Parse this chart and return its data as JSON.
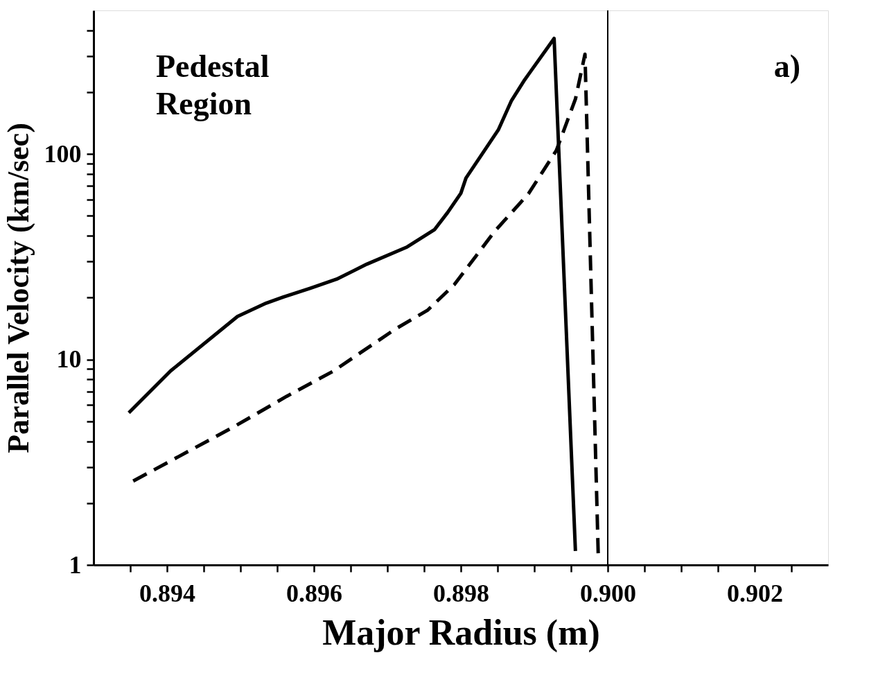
{
  "chart_data": {
    "type": "line",
    "xlabel": "Major Radius (m)",
    "ylabel": "Parallel Velocity (km/sec)",
    "annotations": [
      "Pedestal\nRegion",
      "a)"
    ],
    "log": "y",
    "xlim": [
      0.893,
      0.903
    ],
    "ylim": [
      1,
      500
    ],
    "xticks": [
      {
        "value": 0.8935,
        "label": null
      },
      0.894,
      {
        "value": 0.8945,
        "label": null
      },
      {
        "value": 0.895,
        "label": null
      },
      {
        "value": 0.8955,
        "label": null
      },
      0.896,
      {
        "value": 0.8965,
        "label": null
      },
      {
        "value": 0.897,
        "label": null
      },
      {
        "value": 0.8975,
        "label": null
      },
      0.898,
      {
        "value": 0.8985,
        "label": null
      },
      {
        "value": 0.899,
        "label": null
      },
      {
        "value": 0.8995,
        "label": null
      },
      {
        "value": 0.9,
        "label": "0.900"
      },
      {
        "value": 0.9005,
        "label": null
      },
      {
        "value": 0.901,
        "label": null
      },
      {
        "value": 0.9015,
        "label": null
      },
      0.902,
      {
        "value": 0.9025,
        "label": null
      }
    ],
    "yticks": [
      1,
      {
        "value": 2,
        "label": null
      },
      {
        "value": 3,
        "label": null
      },
      {
        "value": 4,
        "label": null
      },
      {
        "value": 5,
        "label": null
      },
      {
        "value": 6,
        "label": null
      },
      {
        "value": 7,
        "label": null
      },
      {
        "value": 8,
        "label": null
      },
      {
        "value": 9,
        "label": null
      },
      10,
      {
        "value": 20,
        "label": null
      },
      {
        "value": 30,
        "label": null
      },
      {
        "value": 40,
        "label": null
      },
      {
        "value": 50,
        "label": null
      },
      {
        "value": 60,
        "label": null
      },
      {
        "value": 70,
        "label": null
      },
      {
        "value": 80,
        "label": null
      },
      {
        "value": 90,
        "label": null
      },
      100,
      {
        "value": 200,
        "label": null
      },
      {
        "value": 300,
        "label": null
      },
      {
        "value": 400,
        "label": null
      }
    ],
    "grid": false,
    "ref_lines": [
      {
        "axis": "x",
        "value": 0.9,
        "color": "#000000"
      }
    ],
    "series": [
      {
        "color": "#000000",
        "line_style": "solid",
        "x": [
          0.89348,
          0.89405,
          0.89496,
          0.89535,
          0.89558,
          0.89595,
          0.89631,
          0.89672,
          0.89727,
          0.89764,
          0.89782,
          0.898,
          0.89807,
          0.89851,
          0.89869,
          0.89887,
          0.89927,
          0.89956
        ],
        "values": [
          5.5,
          8.8,
          16.2,
          18.8,
          20.1,
          22.2,
          24.6,
          29.1,
          35.3,
          42.8,
          51.9,
          64.4,
          76.4,
          131,
          182,
          230,
          365,
          1.17
        ]
      },
      {
        "color": "#000000",
        "line_style": "dashed",
        "x": [
          0.89354,
          0.8949,
          0.89563,
          0.89627,
          0.8971,
          0.89755,
          0.89791,
          0.89846,
          0.89892,
          0.8993,
          0.89956,
          0.89969,
          0.89987
        ],
        "values": [
          2.56,
          4.68,
          6.62,
          8.8,
          14,
          17.4,
          23.1,
          42,
          64,
          104,
          185,
          306,
          1.14
        ]
      }
    ]
  }
}
